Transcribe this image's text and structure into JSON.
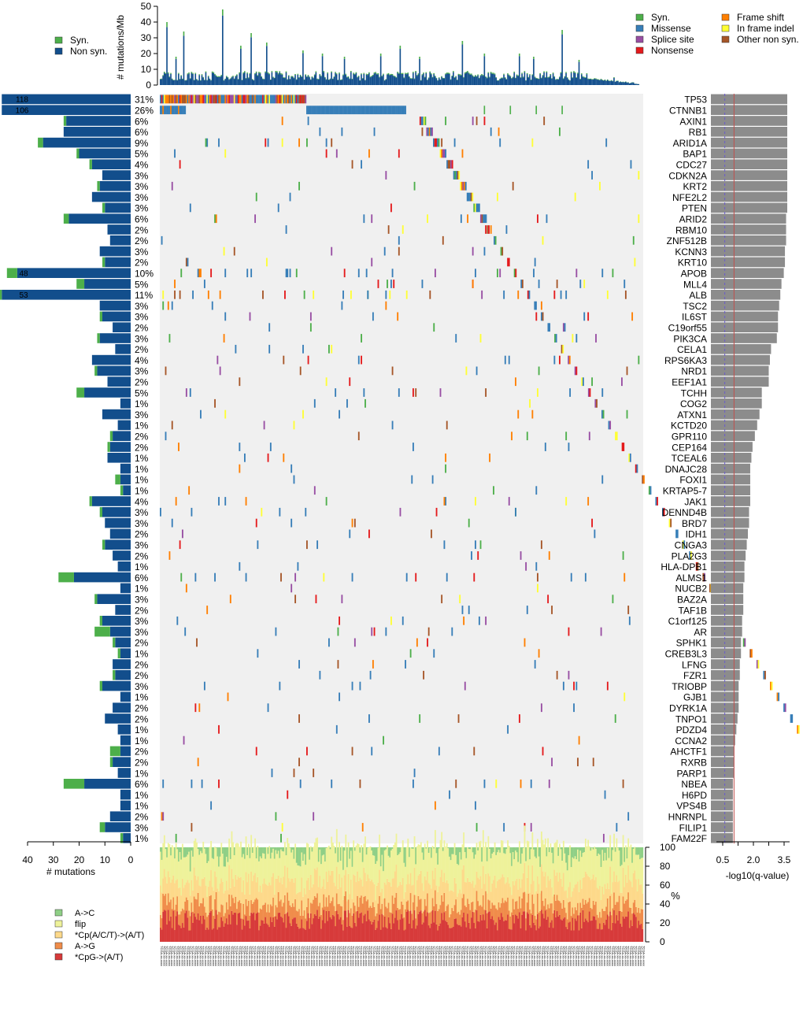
{
  "chart_data": {
    "type": "oncoplot",
    "top_panel": {
      "ylabel": "# mutations/Mb",
      "yticks": [
        0,
        10,
        20,
        30,
        40,
        50
      ],
      "ylim": [
        0,
        50
      ],
      "legend_left": [
        "Syn.",
        "Non syn."
      ],
      "legend_right": [
        "Syn.",
        "Missense",
        "Splice site",
        "Nonsense",
        "Frame shift",
        "In frame indel",
        "Other non syn."
      ]
    },
    "colors": {
      "syn": "#4daf4a",
      "nonsyn": "#124e8c",
      "missense": "#377eb8",
      "splice": "#984ea3",
      "nonsense": "#e41a1c",
      "frameshift": "#ff7f00",
      "inframe": "#ffff33",
      "other": "#a65628",
      "bg": "#f0f0f0",
      "qbar": "#8c8c8c",
      "qline_solid": "#c0504d",
      "qline_dash": "#6a5acd",
      "sig_CpG": "#d73a3a",
      "sig_AG": "#f08c4a",
      "sig_CpACT": "#fdd98a",
      "sig_flip": "#eef29a",
      "sig_AC": "#8fcf86"
    },
    "genes": [
      {
        "name": "TP53",
        "pct": "31%",
        "count": 118,
        "syn": 0,
        "q": 3.3,
        "n": 118
      },
      {
        "name": "CTNNB1",
        "pct": "26%",
        "count": 106,
        "syn": 0,
        "q": 3.3,
        "n": 80
      },
      {
        "name": "AXIN1",
        "pct": "6%",
        "count": 26,
        "syn": 1,
        "q": 3.3,
        "n": 12
      },
      {
        "name": "RB1",
        "pct": "6%",
        "count": 26,
        "syn": 0,
        "q": 3.3,
        "n": 12
      },
      {
        "name": "ARID1A",
        "pct": "9%",
        "count": 36,
        "syn": 2,
        "q": 3.3,
        "n": 20
      },
      {
        "name": "BAP1",
        "pct": "5%",
        "count": 21,
        "syn": 1,
        "q": 3.3,
        "n": 12
      },
      {
        "name": "CDC27",
        "pct": "4%",
        "count": 16,
        "syn": 1,
        "q": 3.3,
        "n": 10
      },
      {
        "name": "CDKN2A",
        "pct": "3%",
        "count": 11,
        "syn": 0,
        "q": 3.3,
        "n": 8
      },
      {
        "name": "KRT2",
        "pct": "3%",
        "count": 13,
        "syn": 1,
        "q": 3.3,
        "n": 10
      },
      {
        "name": "NFE2L2",
        "pct": "3%",
        "count": 15,
        "syn": 0,
        "q": 3.3,
        "n": 9
      },
      {
        "name": "PTEN",
        "pct": "3%",
        "count": 11,
        "syn": 1,
        "q": 3.3,
        "n": 8
      },
      {
        "name": "ARID2",
        "pct": "6%",
        "count": 26,
        "syn": 2,
        "q": 3.25,
        "n": 16
      },
      {
        "name": "RBM10",
        "pct": "2%",
        "count": 9,
        "syn": 0,
        "q": 3.25,
        "n": 8
      },
      {
        "name": "ZNF512B",
        "pct": "2%",
        "count": 8,
        "syn": 0,
        "q": 3.25,
        "n": 7
      },
      {
        "name": "KCNN3",
        "pct": "3%",
        "count": 12,
        "syn": 0,
        "q": 3.2,
        "n": 9
      },
      {
        "name": "KRT10",
        "pct": "2%",
        "count": 11,
        "syn": 1,
        "q": 3.2,
        "n": 8
      },
      {
        "name": "APOB",
        "pct": "10%",
        "count": 48,
        "syn": 4,
        "q": 3.15,
        "n": 26
      },
      {
        "name": "MLL4",
        "pct": "5%",
        "count": 21,
        "syn": 3,
        "q": 3.05,
        "n": 16
      },
      {
        "name": "ALB",
        "pct": "11%",
        "count": 53,
        "syn": 2,
        "q": 3.0,
        "n": 28
      },
      {
        "name": "TSC2",
        "pct": "3%",
        "count": 12,
        "syn": 0,
        "q": 2.95,
        "n": 9
      },
      {
        "name": "IL6ST",
        "pct": "3%",
        "count": 12,
        "syn": 1,
        "q": 2.9,
        "n": 12
      },
      {
        "name": "C19orf55",
        "pct": "2%",
        "count": 7,
        "syn": 0,
        "q": 2.9,
        "n": 7
      },
      {
        "name": "PIK3CA",
        "pct": "3%",
        "count": 13,
        "syn": 1,
        "q": 2.85,
        "n": 10
      },
      {
        "name": "CELA1",
        "pct": "2%",
        "count": 6,
        "syn": 0,
        "q": 2.6,
        "n": 7
      },
      {
        "name": "RPS6KA3",
        "pct": "4%",
        "count": 15,
        "syn": 0,
        "q": 2.55,
        "n": 12
      },
      {
        "name": "NRD1",
        "pct": "3%",
        "count": 14,
        "syn": 1,
        "q": 2.5,
        "n": 10
      },
      {
        "name": "EEF1A1",
        "pct": "2%",
        "count": 9,
        "syn": 0,
        "q": 2.5,
        "n": 8
      },
      {
        "name": "TCHH",
        "pct": "5%",
        "count": 21,
        "syn": 3,
        "q": 2.2,
        "n": 14
      },
      {
        "name": "COG2",
        "pct": "1%",
        "count": 4,
        "syn": 0,
        "q": 2.2,
        "n": 7
      },
      {
        "name": "ATXN1",
        "pct": "3%",
        "count": 11,
        "syn": 0,
        "q": 2.1,
        "n": 9
      },
      {
        "name": "KCTD20",
        "pct": "1%",
        "count": 5,
        "syn": 0,
        "q": 2.0,
        "n": 7
      },
      {
        "name": "GPR110",
        "pct": "2%",
        "count": 8,
        "syn": 1,
        "q": 1.9,
        "n": 8
      },
      {
        "name": "CEP164",
        "pct": "2%",
        "count": 9,
        "syn": 1,
        "q": 1.8,
        "n": 8
      },
      {
        "name": "TCEAL6",
        "pct": "1%",
        "count": 9,
        "syn": 0,
        "q": 1.75,
        "n": 7
      },
      {
        "name": "DNAJC28",
        "pct": "1%",
        "count": 4,
        "syn": 0,
        "q": 1.7,
        "n": 5
      },
      {
        "name": "FOXI1",
        "pct": "1%",
        "count": 6,
        "syn": 2,
        "q": 1.7,
        "n": 6
      },
      {
        "name": "KRTAP5-7",
        "pct": "1%",
        "count": 4,
        "syn": 1,
        "q": 1.7,
        "n": 6
      },
      {
        "name": "JAK1",
        "pct": "4%",
        "count": 16,
        "syn": 1,
        "q": 1.7,
        "n": 13
      },
      {
        "name": "DENND4B",
        "pct": "3%",
        "count": 12,
        "syn": 1,
        "q": 1.65,
        "n": 11
      },
      {
        "name": "BRD7",
        "pct": "3%",
        "count": 10,
        "syn": 0,
        "q": 1.65,
        "n": 9
      },
      {
        "name": "IDH1",
        "pct": "2%",
        "count": 8,
        "syn": 0,
        "q": 1.6,
        "n": 7
      },
      {
        "name": "CNGA3",
        "pct": "3%",
        "count": 11,
        "syn": 1,
        "q": 1.55,
        "n": 10
      },
      {
        "name": "PLA2G3",
        "pct": "2%",
        "count": 7,
        "syn": 0,
        "q": 1.5,
        "n": 8
      },
      {
        "name": "HLA-DPB1",
        "pct": "1%",
        "count": 5,
        "syn": 0,
        "q": 1.45,
        "n": 6
      },
      {
        "name": "ALMS1",
        "pct": "6%",
        "count": 28,
        "syn": 6,
        "q": 1.45,
        "n": 18
      },
      {
        "name": "NUCB2",
        "pct": "1%",
        "count": 4,
        "syn": 0,
        "q": 1.4,
        "n": 5
      },
      {
        "name": "BAZ2A",
        "pct": "3%",
        "count": 14,
        "syn": 1,
        "q": 1.4,
        "n": 10
      },
      {
        "name": "TAF1B",
        "pct": "2%",
        "count": 6,
        "syn": 0,
        "q": 1.4,
        "n": 8
      },
      {
        "name": "C1orf125",
        "pct": "3%",
        "count": 12,
        "syn": 1,
        "q": 1.35,
        "n": 10
      },
      {
        "name": "AR",
        "pct": "3%",
        "count": 14,
        "syn": 6,
        "q": 1.35,
        "n": 12
      },
      {
        "name": "SPHK1",
        "pct": "2%",
        "count": 7,
        "syn": 1,
        "q": 1.3,
        "n": 8
      },
      {
        "name": "CREB3L3",
        "pct": "1%",
        "count": 5,
        "syn": 1,
        "q": 1.3,
        "n": 6
      },
      {
        "name": "LFNG",
        "pct": "2%",
        "count": 7,
        "syn": 0,
        "q": 1.25,
        "n": 7
      },
      {
        "name": "FZR1",
        "pct": "2%",
        "count": 7,
        "syn": 1,
        "q": 1.25,
        "n": 7
      },
      {
        "name": "TRIOBP",
        "pct": "3%",
        "count": 12,
        "syn": 1,
        "q": 1.2,
        "n": 11
      },
      {
        "name": "GJB1",
        "pct": "1%",
        "count": 4,
        "syn": 0,
        "q": 1.2,
        "n": 5
      },
      {
        "name": "DYRK1A",
        "pct": "2%",
        "count": 7,
        "syn": 0,
        "q": 1.2,
        "n": 7
      },
      {
        "name": "TNPO1",
        "pct": "2%",
        "count": 10,
        "syn": 0,
        "q": 1.15,
        "n": 8
      },
      {
        "name": "PDZD4",
        "pct": "1%",
        "count": 5,
        "syn": 0,
        "q": 1.1,
        "n": 5
      },
      {
        "name": "CCNA2",
        "pct": "1%",
        "count": 4,
        "syn": 0,
        "q": 1.05,
        "n": 5
      },
      {
        "name": "AHCTF1",
        "pct": "2%",
        "count": 8,
        "syn": 4,
        "q": 1.0,
        "n": 9
      },
      {
        "name": "RXRB",
        "pct": "2%",
        "count": 8,
        "syn": 1,
        "q": 1.0,
        "n": 7
      },
      {
        "name": "PARP1",
        "pct": "1%",
        "count": 5,
        "syn": 0,
        "q": 1.0,
        "n": 6
      },
      {
        "name": "NBEA",
        "pct": "6%",
        "count": 26,
        "syn": 8,
        "q": 0.95,
        "n": 17
      },
      {
        "name": "H6PD",
        "pct": "1%",
        "count": 4,
        "syn": 0,
        "q": 0.95,
        "n": 5
      },
      {
        "name": "VPS4B",
        "pct": "1%",
        "count": 4,
        "syn": 0,
        "q": 0.95,
        "n": 5
      },
      {
        "name": "HNRNPL",
        "pct": "2%",
        "count": 8,
        "syn": 0,
        "q": 0.95,
        "n": 7
      },
      {
        "name": "FILIP1",
        "pct": "3%",
        "count": 12,
        "syn": 2,
        "q": 0.95,
        "n": 10
      },
      {
        "name": "FAM22F",
        "pct": "1%",
        "count": 4,
        "syn": 1,
        "q": 0.95,
        "n": 5
      }
    ],
    "left_axis": {
      "xlabel": "# mutations",
      "ticks": [
        40,
        30,
        20,
        10,
        0
      ],
      "xlim": [
        0,
        40
      ]
    },
    "right_axis": {
      "xlabel": "-log10(q-value)",
      "ticks": [
        0.5,
        2.0,
        3.5
      ],
      "tick_labels": [
        "0.5",
        "2.0",
        "3.5"
      ],
      "xlim": [
        0,
        4.2
      ],
      "threshold_solid": 1.0,
      "threshold_dash": 0.6
    },
    "bottom_panel": {
      "ylabel": "%",
      "yticks": [
        0,
        20,
        40,
        60,
        80,
        100
      ],
      "legend": [
        "A->C",
        "flip",
        "*Cp(A/C/T)->(A/T)",
        "A->G",
        "*CpG->(A/T)"
      ]
    },
    "sample_label_text": "TCGA-xx-xxxx"
  }
}
